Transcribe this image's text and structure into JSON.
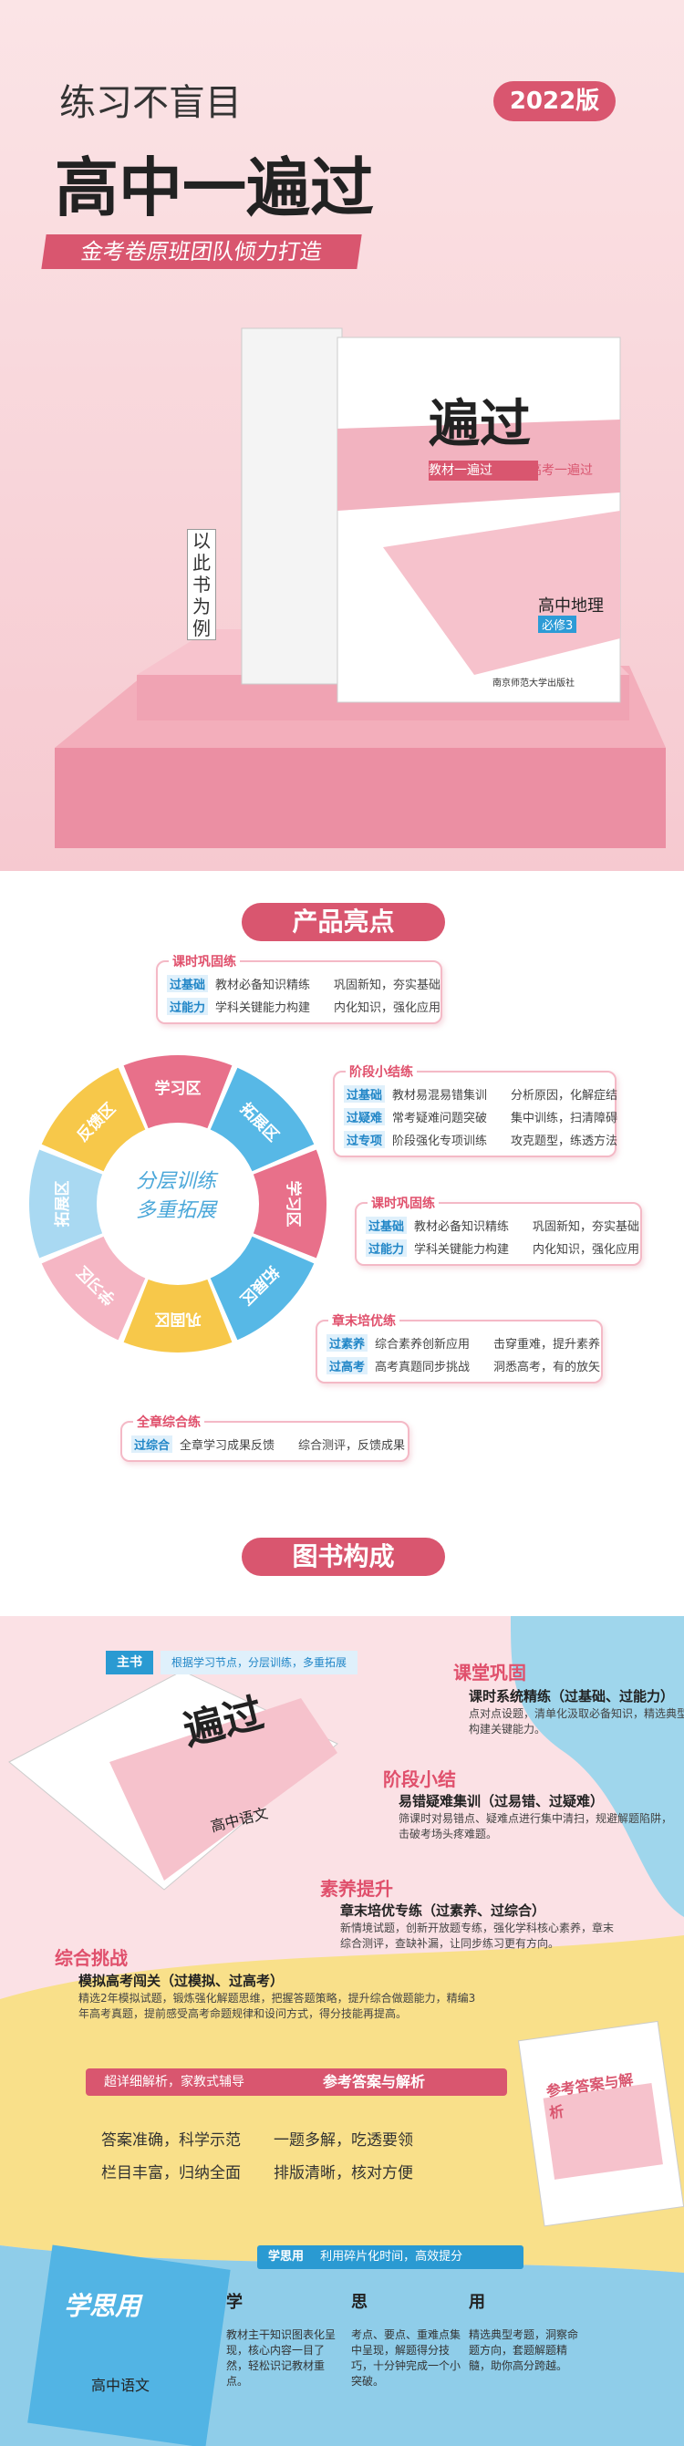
{
  "header": {
    "slogan": "练习不盲目",
    "edition": "2022版",
    "title": "高中一遍过",
    "banner": "金考卷原班团队倾力打造",
    "example_note": "以此书为例"
  },
  "cover": {
    "brand": "遍过",
    "tagline_1": "教材一遍过",
    "tagline_2": "高考一遍过",
    "subject": "高中地理",
    "volume": "必修3",
    "publisher": "南京师范大学出版社"
  },
  "highlights": {
    "heading": "产品亮点",
    "wheel_center": [
      "分层训练",
      "多重拓展"
    ],
    "zones": [
      "学习区",
      "拓展区",
      "学习区",
      "拓展区",
      "巩固区",
      "学习区",
      "拓展区",
      "反馈区"
    ],
    "callouts": [
      {
        "title": "课时巩固练",
        "rows": [
          [
            "过基础",
            "教材必备知识精练",
            "巩固新知，夯实基础"
          ],
          [
            "过能力",
            "学科关键能力构建",
            "内化知识，强化应用"
          ]
        ]
      },
      {
        "title": "阶段小结练",
        "rows": [
          [
            "过基础",
            "教材易混易错集训",
            "分析原因，化解症结"
          ],
          [
            "过疑难",
            "常考疑难问题突破",
            "集中训练，扫清障碍"
          ],
          [
            "过专项",
            "阶段强化专项训练",
            "攻克题型，练透方法"
          ]
        ]
      },
      {
        "title": "课时巩固练",
        "rows": [
          [
            "过基础",
            "教材必备知识精练",
            "巩固新知，夯实基础"
          ],
          [
            "过能力",
            "学科关键能力构建",
            "内化知识，强化应用"
          ]
        ]
      },
      {
        "title": "章末培优练",
        "rows": [
          [
            "过素养",
            "综合素养创新应用",
            "击穿重难，提升素养"
          ],
          [
            "过高考",
            "高考真题同步挑战",
            "洞悉高考，有的放矢"
          ]
        ]
      },
      {
        "title": "全章综合练",
        "rows": [
          [
            "过综合",
            "全章学习成果反馈",
            "综合测评，反馈成果"
          ]
        ]
      }
    ]
  },
  "composition": {
    "heading": "图书构成",
    "main_book": {
      "label": "主书",
      "desc": "根据学习节点，分层训练，多重拓展",
      "cover_brand": "遍过",
      "cover_subject": "高中语文"
    },
    "modules": [
      {
        "name": "课堂巩固",
        "subtitle": "课时系统精练（过基础、过能力）",
        "desc": "点对点设题，清单化汲取必备知识，精选典型题，模块化构建关键能力。"
      },
      {
        "name": "阶段小结",
        "subtitle": "易错疑难集训（过易错、过疑难）",
        "desc": "筛课时对易错点、疑难点进行集中清扫，规避解题陷阱，击破考场头疼难题。"
      },
      {
        "name": "素养提升",
        "subtitle": "章末培优专练（过素养、过综合）",
        "desc": "新情境试题，创新开放题专练，强化学科核心素养，章末综合测评，查缺补漏，让同步练习更有方向。"
      },
      {
        "name": "综合挑战",
        "subtitle": "模拟高考闯关（过模拟、过高考）",
        "desc": "精选2年模拟试题，锻炼强化解题思维，把握答题策略，提升综合做题能力，精编3年高考真题，提前感受高考命题规律和设问方式，得分技能再提高。"
      }
    ],
    "answers": {
      "label": "超详细解析，家教式辅导",
      "title": "参考答案与解析",
      "features": [
        "答案准确，科学示范",
        "一题多解，吃透要领",
        "栏目丰富，归纳全面",
        "排版清晰，核对方便"
      ],
      "cover_title": "参考答案与解析"
    },
    "xsy": {
      "label": "学思用",
      "desc": "利用碎片化时间，高效提分",
      "columns": [
        {
          "head": "学",
          "text": "教材主干知识图表化呈现，核心内容一目了然，轻松识记教材重点。"
        },
        {
          "head": "思",
          "text": "考点、要点、重难点集中呈现，解题得分技巧，十分钟完成一个小突破。"
        },
        {
          "head": "用",
          "text": "精选典型考题，洞察命题方向，套题解题精髓，助你高分跨越。"
        }
      ],
      "cover_title": "学思用",
      "cover_subject": "高中语文"
    }
  }
}
